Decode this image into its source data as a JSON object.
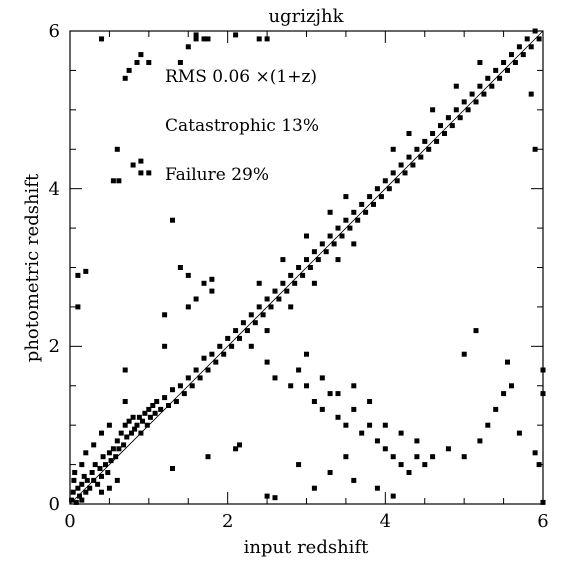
{
  "chart_data": {
    "type": "scatter",
    "title": "ugrizjhk",
    "xlabel": "input redshift",
    "ylabel": "photometric redshift",
    "xlim": [
      0,
      6
    ],
    "ylim": [
      0,
      6
    ],
    "xticks": [
      "0",
      "2",
      "4",
      "6"
    ],
    "yticks": [
      "0",
      "2",
      "4",
      "6"
    ],
    "grid": false,
    "annotations": [
      "RMS 0.06 ×(1+z)",
      "Catastrophic 13%",
      "Failure 29%"
    ],
    "reference_line": {
      "from": [
        0,
        0
      ],
      "to": [
        6,
        6
      ]
    },
    "points": [
      [
        0.02,
        0.05
      ],
      [
        0.04,
        0.15
      ],
      [
        0.05,
        0.3
      ],
      [
        0.06,
        0.4
      ],
      [
        0.08,
        0.02
      ],
      [
        0.1,
        0.2
      ],
      [
        0.12,
        0.1
      ],
      [
        0.15,
        0.05
      ],
      [
        0.15,
        0.25
      ],
      [
        0.18,
        0.35
      ],
      [
        0.2,
        0.15
      ],
      [
        0.22,
        0.3
      ],
      [
        0.25,
        0.2
      ],
      [
        0.28,
        0.4
      ],
      [
        0.3,
        0.3
      ],
      [
        0.32,
        0.5
      ],
      [
        0.35,
        0.25
      ],
      [
        0.38,
        0.45
      ],
      [
        0.4,
        0.35
      ],
      [
        0.42,
        0.6
      ],
      [
        0.45,
        0.5
      ],
      [
        0.48,
        0.4
      ],
      [
        0.5,
        0.65
      ],
      [
        0.52,
        0.55
      ],
      [
        0.55,
        0.7
      ],
      [
        0.58,
        0.6
      ],
      [
        0.6,
        0.8
      ],
      [
        0.62,
        0.7
      ],
      [
        0.65,
        0.9
      ],
      [
        0.68,
        0.75
      ],
      [
        0.7,
        1.0
      ],
      [
        0.72,
        0.85
      ],
      [
        0.75,
        1.05
      ],
      [
        0.78,
        0.9
      ],
      [
        0.8,
        1.1
      ],
      [
        0.82,
        0.95
      ],
      [
        0.85,
        1.0
      ],
      [
        0.88,
        1.1
      ],
      [
        0.9,
        0.9
      ],
      [
        0.92,
        1.05
      ],
      [
        0.95,
        1.15
      ],
      [
        0.98,
        1.0
      ],
      [
        1.0,
        1.2
      ],
      [
        1.02,
        1.1
      ],
      [
        1.05,
        1.25
      ],
      [
        1.08,
        1.15
      ],
      [
        1.1,
        1.3
      ],
      [
        1.15,
        1.2
      ],
      [
        1.2,
        1.35
      ],
      [
        1.25,
        1.25
      ],
      [
        1.3,
        1.45
      ],
      [
        1.35,
        1.3
      ],
      [
        1.4,
        1.5
      ],
      [
        1.45,
        1.4
      ],
      [
        1.5,
        1.6
      ],
      [
        1.55,
        1.5
      ],
      [
        1.6,
        1.7
      ],
      [
        1.65,
        1.6
      ],
      [
        1.7,
        1.85
      ],
      [
        1.75,
        1.7
      ],
      [
        1.8,
        1.9
      ],
      [
        1.85,
        1.8
      ],
      [
        1.9,
        2.0
      ],
      [
        1.95,
        1.9
      ],
      [
        2.0,
        2.1
      ],
      [
        2.05,
        2.0
      ],
      [
        2.1,
        2.2
      ],
      [
        2.15,
        2.1
      ],
      [
        2.2,
        2.3
      ],
      [
        2.25,
        2.2
      ],
      [
        2.3,
        2.4
      ],
      [
        2.35,
        2.3
      ],
      [
        2.4,
        2.5
      ],
      [
        2.45,
        2.4
      ],
      [
        2.5,
        2.6
      ],
      [
        2.55,
        2.5
      ],
      [
        2.6,
        2.7
      ],
      [
        2.65,
        2.6
      ],
      [
        2.7,
        2.8
      ],
      [
        2.75,
        2.7
      ],
      [
        2.8,
        2.9
      ],
      [
        2.85,
        2.8
      ],
      [
        2.9,
        3.0
      ],
      [
        2.95,
        2.9
      ],
      [
        3.0,
        3.1
      ],
      [
        3.05,
        3.0
      ],
      [
        3.1,
        3.2
      ],
      [
        3.15,
        3.1
      ],
      [
        3.2,
        3.3
      ],
      [
        3.25,
        3.2
      ],
      [
        3.3,
        3.4
      ],
      [
        3.35,
        3.3
      ],
      [
        3.4,
        3.5
      ],
      [
        3.45,
        3.4
      ],
      [
        3.5,
        3.6
      ],
      [
        3.55,
        3.5
      ],
      [
        3.6,
        3.7
      ],
      [
        3.65,
        3.6
      ],
      [
        3.7,
        3.8
      ],
      [
        3.75,
        3.7
      ],
      [
        3.8,
        3.9
      ],
      [
        3.85,
        3.8
      ],
      [
        3.9,
        4.0
      ],
      [
        3.95,
        3.9
      ],
      [
        4.0,
        4.1
      ],
      [
        4.05,
        4.0
      ],
      [
        4.1,
        4.2
      ],
      [
        4.15,
        4.1
      ],
      [
        4.2,
        4.3
      ],
      [
        4.25,
        4.2
      ],
      [
        4.3,
        4.4
      ],
      [
        4.35,
        4.3
      ],
      [
        4.4,
        4.5
      ],
      [
        4.45,
        4.4
      ],
      [
        4.5,
        4.6
      ],
      [
        4.55,
        4.5
      ],
      [
        4.6,
        4.7
      ],
      [
        4.65,
        4.6
      ],
      [
        4.7,
        4.8
      ],
      [
        4.75,
        4.7
      ],
      [
        4.8,
        4.9
      ],
      [
        4.85,
        4.8
      ],
      [
        4.9,
        5.0
      ],
      [
        4.95,
        4.9
      ],
      [
        5.0,
        5.1
      ],
      [
        5.05,
        5.0
      ],
      [
        5.1,
        5.2
      ],
      [
        5.15,
        5.1
      ],
      [
        5.2,
        5.3
      ],
      [
        5.25,
        5.2
      ],
      [
        5.3,
        5.4
      ],
      [
        5.35,
        5.3
      ],
      [
        5.4,
        5.5
      ],
      [
        5.45,
        5.4
      ],
      [
        5.5,
        5.6
      ],
      [
        5.55,
        5.5
      ],
      [
        5.6,
        5.7
      ],
      [
        5.65,
        5.6
      ],
      [
        5.7,
        5.8
      ],
      [
        5.75,
        5.7
      ],
      [
        5.8,
        5.9
      ],
      [
        5.85,
        5.8
      ],
      [
        5.9,
        6.0
      ],
      [
        5.95,
        5.9
      ],
      [
        2.3,
        2.0
      ],
      [
        2.5,
        2.2
      ],
      [
        2.8,
        2.5
      ],
      [
        3.1,
        2.8
      ],
      [
        3.4,
        3.1
      ],
      [
        3.6,
        3.3
      ],
      [
        2.4,
        2.8
      ],
      [
        2.7,
        3.1
      ],
      [
        3.0,
        3.4
      ],
      [
        3.3,
        3.7
      ],
      [
        3.5,
        3.9
      ],
      [
        4.1,
        4.5
      ],
      [
        4.3,
        4.7
      ],
      [
        4.6,
        5.0
      ],
      [
        4.9,
        5.3
      ],
      [
        5.2,
        5.6
      ],
      [
        2.5,
        1.8
      ],
      [
        2.6,
        1.6
      ],
      [
        2.8,
        1.5
      ],
      [
        3.0,
        1.5
      ],
      [
        3.1,
        1.3
      ],
      [
        3.2,
        1.2
      ],
      [
        3.3,
        1.4
      ],
      [
        3.4,
        1.1
      ],
      [
        3.5,
        1.0
      ],
      [
        3.6,
        1.2
      ],
      [
        3.7,
        0.9
      ],
      [
        3.8,
        1.0
      ],
      [
        3.9,
        0.8
      ],
      [
        4.0,
        0.7
      ],
      [
        4.1,
        0.6
      ],
      [
        4.2,
        0.5
      ],
      [
        4.3,
        0.4
      ],
      [
        4.4,
        0.6
      ],
      [
        4.5,
        0.5
      ],
      [
        2.9,
        1.7
      ],
      [
        3.0,
        1.9
      ],
      [
        3.2,
        1.6
      ],
      [
        3.4,
        1.4
      ],
      [
        3.6,
        1.5
      ],
      [
        3.8,
        1.3
      ],
      [
        4.0,
        1.0
      ],
      [
        3.3,
        0.4
      ],
      [
        3.6,
        0.3
      ],
      [
        3.9,
        0.2
      ],
      [
        4.1,
        0.1
      ],
      [
        3.1,
        0.2
      ],
      [
        2.9,
        0.5
      ],
      [
        2.5,
        0.1
      ],
      [
        2.6,
        0.08
      ],
      [
        3.5,
        0.6
      ],
      [
        4.2,
        0.9
      ],
      [
        4.4,
        0.8
      ],
      [
        4.6,
        0.6
      ],
      [
        4.8,
        0.7
      ],
      [
        5.0,
        0.6
      ],
      [
        5.2,
        0.8
      ],
      [
        5.3,
        1.0
      ],
      [
        5.4,
        1.2
      ],
      [
        5.5,
        1.4
      ],
      [
        5.6,
        1.5
      ],
      [
        5.7,
        0.9
      ],
      [
        5.9,
        0.65
      ],
      [
        5.95,
        0.5
      ],
      [
        6.0,
        0.02
      ],
      [
        5.0,
        1.9
      ],
      [
        5.15,
        2.2
      ],
      [
        5.55,
        1.8
      ],
      [
        5.85,
        5.2
      ],
      [
        5.9,
        4.5
      ],
      [
        6.0,
        1.7
      ],
      [
        6.0,
        1.4
      ],
      [
        0.1,
        2.5
      ],
      [
        0.1,
        2.9
      ],
      [
        0.2,
        2.95
      ],
      [
        0.6,
        4.5
      ],
      [
        0.55,
        4.1
      ],
      [
        0.62,
        4.1
      ],
      [
        0.8,
        4.3
      ],
      [
        0.9,
        4.35
      ],
      [
        0.9,
        4.2
      ],
      [
        1.0,
        4.2
      ],
      [
        0.7,
        5.4
      ],
      [
        0.75,
        5.5
      ],
      [
        0.85,
        5.6
      ],
      [
        0.9,
        5.7
      ],
      [
        1.0,
        5.6
      ],
      [
        0.4,
        5.9
      ],
      [
        1.4,
        5.6
      ],
      [
        1.5,
        5.8
      ],
      [
        1.6,
        5.9
      ],
      [
        1.7,
        5.9
      ],
      [
        1.75,
        5.9
      ],
      [
        2.1,
        5.95
      ],
      [
        2.4,
        5.9
      ],
      [
        2.5,
        5.9
      ],
      [
        1.6,
        5.95
      ],
      [
        1.3,
        3.6
      ],
      [
        1.4,
        3.0
      ],
      [
        1.5,
        2.9
      ],
      [
        1.7,
        2.8
      ],
      [
        1.8,
        2.85
      ],
      [
        1.8,
        2.7
      ],
      [
        1.6,
        2.6
      ],
      [
        1.5,
        2.5
      ],
      [
        1.2,
        2.4
      ],
      [
        1.3,
        0.45
      ],
      [
        1.75,
        0.6
      ],
      [
        2.1,
        0.7
      ],
      [
        2.15,
        0.75
      ],
      [
        1.2,
        2.0
      ],
      [
        0.7,
        1.7
      ],
      [
        0.7,
        1.3
      ],
      [
        0.5,
        1.0
      ],
      [
        0.4,
        0.9
      ],
      [
        0.3,
        0.75
      ],
      [
        0.2,
        0.65
      ],
      [
        0.15,
        0.5
      ],
      [
        0.5,
        0.2
      ],
      [
        0.6,
        0.3
      ],
      [
        0.4,
        0.15
      ]
    ]
  }
}
